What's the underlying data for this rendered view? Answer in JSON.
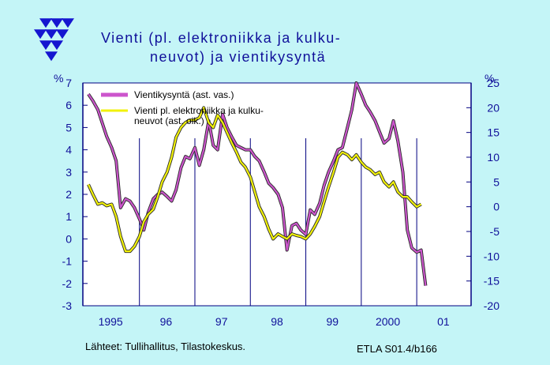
{
  "colors": {
    "background": "#c4f5f7",
    "plot_background": "#ffffff",
    "text": "#10109a",
    "series_left": "#cc55cc",
    "series_right": "#f2f20a",
    "grid": "#000080"
  },
  "logo": {
    "name": "etla-logo-icon"
  },
  "chart_data": {
    "type": "line",
    "title": "Vienti (pl. elektroniikka ja kulku-\nneuvot) ja vientikysyntä",
    "title_lines": [
      "Vienti  (pl.  elektroniikka  ja  kulku-",
      "neuvot)  ja  vientikysyntä"
    ],
    "left_axis_unit": "%",
    "right_axis_unit": "%",
    "ylim_left": [
      -3,
      7
    ],
    "ylim_right": [
      -20,
      25
    ],
    "left_ticks": [
      "7",
      "6",
      "5",
      "4",
      "3",
      "2",
      "1",
      "0",
      "-1",
      "-2",
      "-3"
    ],
    "right_ticks": [
      "25",
      "20",
      "15",
      "10",
      "5",
      "0",
      "-5",
      "-10",
      "-15",
      "-20"
    ],
    "x_labels": [
      "1995",
      "96",
      "97",
      "98",
      "99",
      "2000",
      "01"
    ],
    "grid": "vertical year separators",
    "legend_placement": "top-left",
    "series": [
      {
        "name": "Vientikysyntä (ast. vas.)",
        "axis": "left",
        "x": [
          1995.0,
          1995.08,
          1995.17,
          1995.25,
          1995.33,
          1995.42,
          1995.5,
          1995.58,
          1995.67,
          1995.75,
          1995.83,
          1995.92,
          1996.0,
          1996.08,
          1996.17,
          1996.25,
          1996.33,
          1996.42,
          1996.5,
          1996.58,
          1996.67,
          1996.75,
          1996.83,
          1996.92,
          1997.0,
          1997.08,
          1997.17,
          1997.25,
          1997.33,
          1997.42,
          1997.5,
          1997.58,
          1997.67,
          1997.75,
          1997.83,
          1997.92,
          1998.0,
          1998.08,
          1998.17,
          1998.25,
          1998.33,
          1998.42,
          1998.5,
          1998.58,
          1998.67,
          1998.75,
          1998.83,
          1998.92,
          1999.0,
          1999.08,
          1999.17,
          1999.25,
          1999.33,
          1999.42,
          1999.5,
          1999.58,
          1999.67,
          1999.75,
          1999.83,
          1999.92,
          2000.0,
          2000.08,
          2000.17,
          2000.25,
          2000.33,
          2000.42,
          2000.5,
          2000.58,
          2000.67,
          2000.75,
          2000.83,
          2000.92,
          2001.0,
          2001.08
        ],
        "values": [
          6.5,
          6.2,
          5.8,
          5.2,
          4.6,
          4.1,
          3.5,
          1.4,
          1.8,
          1.7,
          1.4,
          0.9,
          0.4,
          1.2,
          1.8,
          2.0,
          2.1,
          1.9,
          1.7,
          2.2,
          3.2,
          3.7,
          3.6,
          4.1,
          3.3,
          4.0,
          5.3,
          4.2,
          4.0,
          5.6,
          5.0,
          4.6,
          4.2,
          4.1,
          4.0,
          4.0,
          3.7,
          3.5,
          3.0,
          2.5,
          2.3,
          2.0,
          1.4,
          -0.5,
          0.6,
          0.7,
          0.4,
          0.2,
          1.3,
          1.1,
          1.6,
          2.4,
          3.0,
          3.5,
          4.0,
          4.1,
          5.0,
          5.8,
          7.0,
          6.5,
          6.0,
          5.7,
          5.3,
          4.8,
          4.3,
          4.5,
          5.3,
          4.4,
          3.0,
          0.4,
          -0.4,
          -0.6,
          -0.5,
          -2.1
        ]
      },
      {
        "name": "Vienti pl. elektroniikka ja kulku-\nneuvot (ast. oik.)",
        "name_lines": [
          "Vienti pl. elektroniikka ja kulku-",
          "neuvot (ast. oik.)"
        ],
        "axis": "right",
        "x": [
          1995.0,
          1995.08,
          1995.17,
          1995.25,
          1995.33,
          1995.42,
          1995.5,
          1995.58,
          1995.67,
          1995.75,
          1995.83,
          1995.92,
          1996.0,
          1996.08,
          1996.17,
          1996.25,
          1996.33,
          1996.42,
          1996.5,
          1996.58,
          1996.67,
          1996.75,
          1996.83,
          1996.92,
          1997.0,
          1997.08,
          1997.17,
          1997.25,
          1997.33,
          1997.42,
          1997.5,
          1997.58,
          1997.67,
          1997.75,
          1997.83,
          1997.92,
          1998.0,
          1998.08,
          1998.17,
          1998.25,
          1998.33,
          1998.42,
          1998.5,
          1998.58,
          1998.67,
          1998.75,
          1998.83,
          1998.92,
          1999.0,
          1999.08,
          1999.17,
          1999.25,
          1999.33,
          1999.42,
          1999.5,
          1999.58,
          1999.67,
          1999.75,
          1999.83,
          1999.92,
          2000.0,
          2000.08,
          2000.17,
          2000.25,
          2000.33,
          2000.42,
          2000.5,
          2000.58,
          2000.67,
          2000.75,
          2000.83,
          2000.92,
          2001.0
        ],
        "values": [
          4.5,
          2.5,
          0.5,
          0.8,
          0.2,
          0.5,
          -2.0,
          -6.0,
          -9.0,
          -9.0,
          -8.0,
          -6.0,
          -3.0,
          -1.5,
          -0.5,
          2.0,
          5.0,
          7.0,
          10.0,
          14.0,
          16.0,
          17.0,
          17.5,
          17.5,
          18.0,
          20.0,
          17.0,
          16.0,
          18.5,
          17.0,
          15.0,
          13.0,
          11.0,
          9.0,
          8.0,
          6.0,
          3.0,
          0.0,
          -2.0,
          -4.5,
          -6.5,
          -5.5,
          -6.0,
          -6.5,
          -5.5,
          -5.8,
          -6.0,
          -6.5,
          -5.5,
          -4.0,
          -2.0,
          1.0,
          4.0,
          7.0,
          10.0,
          11.0,
          10.5,
          9.5,
          10.5,
          9.0,
          8.0,
          7.5,
          6.5,
          7.0,
          5.0,
          4.0,
          5.0,
          3.0,
          2.0,
          2.0,
          1.0,
          0.0,
          0.5
        ]
      }
    ]
  },
  "footer": {
    "sources": "Lähteet:   Tullihallitus, Tilastokeskus.",
    "code": "ETLA S01.4/b166"
  }
}
